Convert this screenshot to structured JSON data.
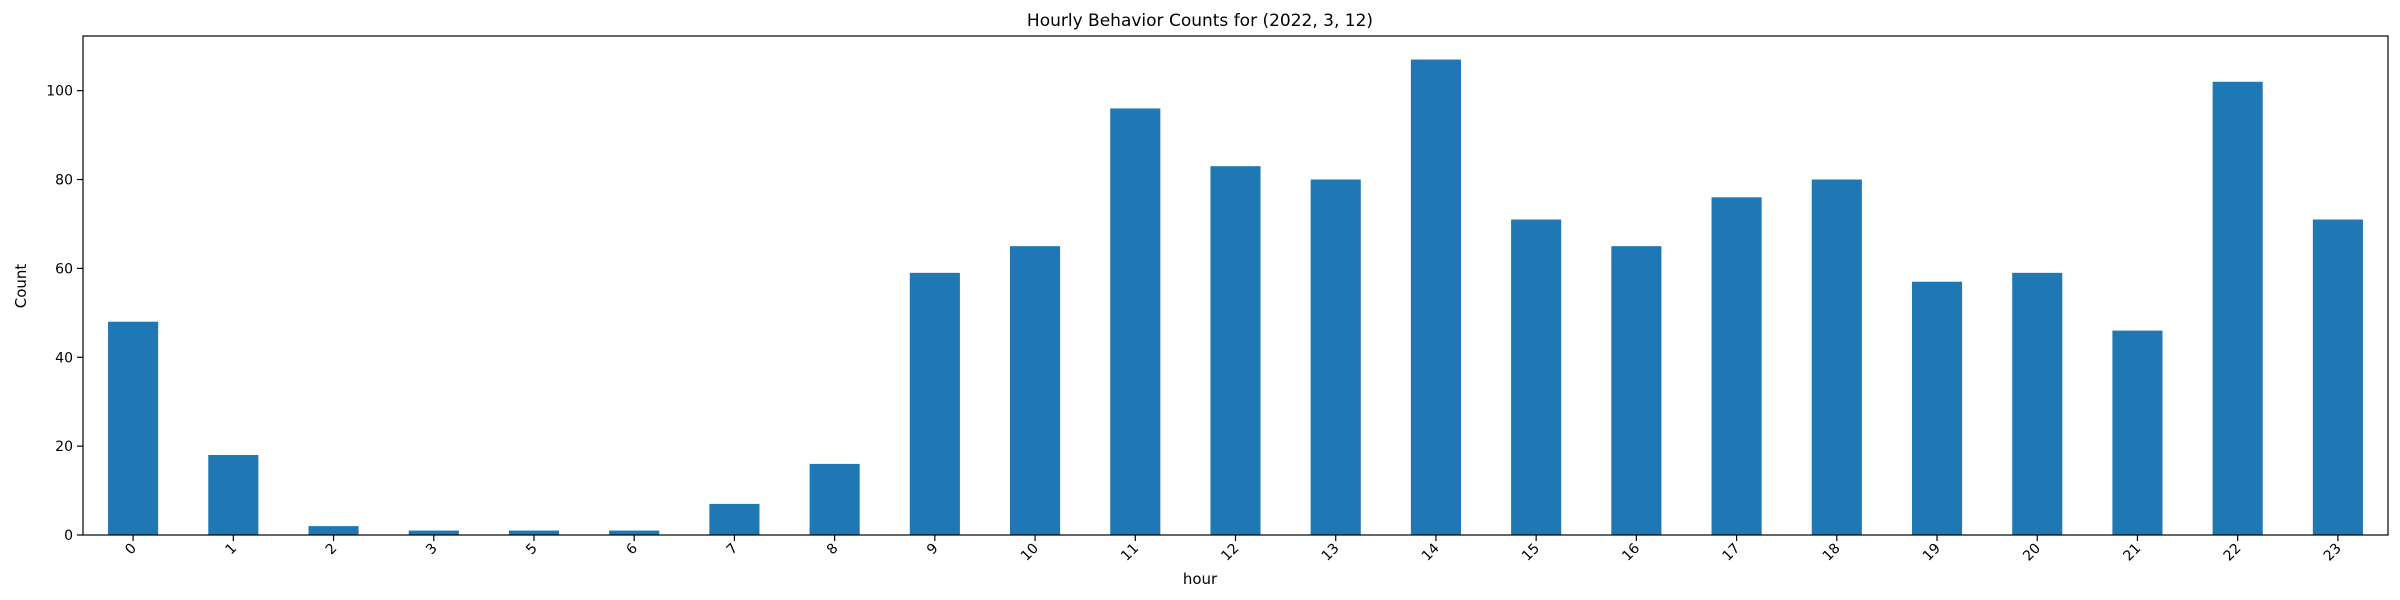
{
  "chart_data": {
    "type": "bar",
    "title": "Hourly Behavior Counts for (2022, 3, 12)",
    "xlabel": "hour",
    "ylabel": "Count",
    "categories": [
      "0",
      "1",
      "2",
      "3",
      "5",
      "6",
      "7",
      "8",
      "9",
      "10",
      "11",
      "12",
      "13",
      "14",
      "15",
      "16",
      "17",
      "18",
      "19",
      "20",
      "21",
      "22",
      "23"
    ],
    "values": [
      48,
      18,
      2,
      1,
      1,
      1,
      7,
      16,
      59,
      65,
      96,
      83,
      80,
      107,
      71,
      65,
      76,
      80,
      57,
      59,
      46,
      102,
      71
    ],
    "ylim": [
      0,
      112.3
    ],
    "yticks": [
      0,
      20,
      40,
      60,
      80,
      100
    ],
    "bar_color": "#1f77b4",
    "grid": false,
    "legend": false
  }
}
